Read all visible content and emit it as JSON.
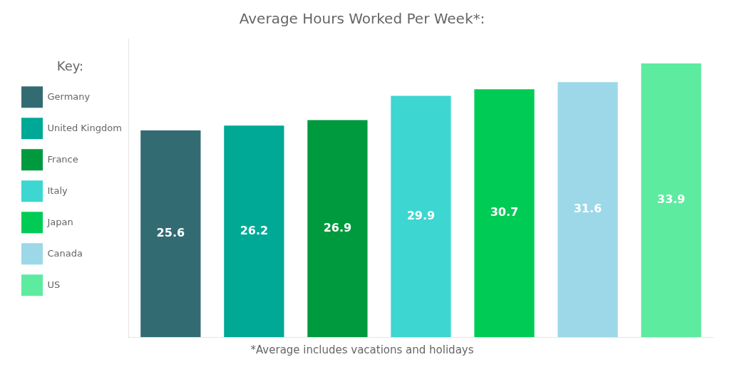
{
  "chart_data": {
    "type": "bar",
    "title": "Average Hours Worked Per Week*:",
    "footnote": "*Average includes vacations and holidays",
    "legend_title": "Key:",
    "categories": [
      "Germany",
      "United Kingdom",
      "France",
      "Italy",
      "Japan",
      "Canada",
      "US"
    ],
    "values": [
      25.6,
      26.2,
      26.9,
      29.9,
      30.7,
      31.6,
      33.9
    ],
    "colors": [
      "#336b73",
      "#00a896",
      "#009a3e",
      "#3dd6d0",
      "#00cc55",
      "#9dd8e8",
      "#5deba0"
    ],
    "ylim": [
      0,
      37
    ],
    "grid": false,
    "tick_labels": false,
    "data_labels": true,
    "legend": "left"
  }
}
